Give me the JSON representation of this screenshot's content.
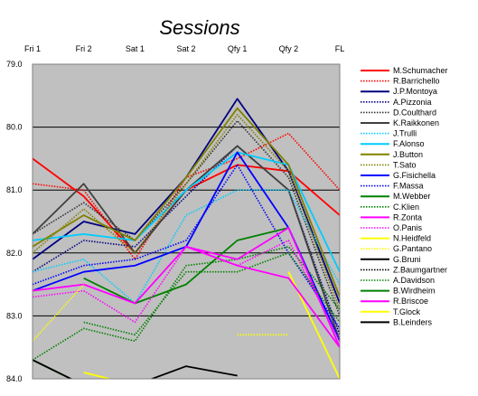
{
  "chart_data": {
    "type": "line",
    "title": "Sessions",
    "categories": [
      "Fri 1",
      "Fri 2",
      "Sat 1",
      "Sat 2",
      "Qfy 1",
      "Qfy 2",
      "FL"
    ],
    "ylim": [
      79.0,
      84.0
    ],
    "y_inverted": true,
    "yticks": [
      "79.0",
      "80.0",
      "81.0",
      "82.0",
      "83.0",
      "84.0"
    ],
    "grid": true,
    "plot_background": "#c0c0c0",
    "legend_position": "right",
    "series": [
      {
        "name": "M.Schumacher",
        "color": "#ff0000",
        "style": "solid",
        "values": [
          80.5,
          81.1,
          82.0,
          81.0,
          80.6,
          80.7,
          81.4
        ]
      },
      {
        "name": "R.Barrichello",
        "color": "#ff0000",
        "style": "dotted",
        "values": [
          80.9,
          81.0,
          82.1,
          80.8,
          80.5,
          80.1,
          81.0
        ]
      },
      {
        "name": "J.P.Montoya",
        "color": "#000080",
        "style": "solid",
        "values": [
          82.1,
          81.5,
          81.7,
          80.8,
          79.55,
          80.7,
          82.8
        ]
      },
      {
        "name": "A.Pizzonia",
        "color": "#000080",
        "style": "dotted",
        "values": [
          82.3,
          81.8,
          81.9,
          81.1,
          80.3,
          81.0,
          83.3
        ]
      },
      {
        "name": "D.Coulthard",
        "color": "#333333",
        "style": "dotted",
        "values": [
          81.7,
          81.2,
          81.8,
          80.9,
          79.9,
          80.8,
          83.0
        ]
      },
      {
        "name": "K.Raikkonen",
        "color": "#404040",
        "style": "solid",
        "values": [
          81.7,
          80.9,
          82.0,
          81.0,
          80.3,
          81.0,
          83.4
        ]
      },
      {
        "name": "J.Trulli",
        "color": "#00ccff",
        "style": "dotted",
        "values": [
          82.3,
          82.1,
          82.8,
          81.4,
          81.0,
          81.0,
          82.5
        ]
      },
      {
        "name": "F.Alonso",
        "color": "#00ccff",
        "style": "solid",
        "values": [
          81.8,
          81.7,
          81.8,
          81.0,
          80.4,
          80.6,
          82.3
        ]
      },
      {
        "name": "J.Button",
        "color": "#808000",
        "style": "solid",
        "values": [
          81.9,
          81.4,
          81.8,
          80.8,
          79.7,
          80.6,
          82.7
        ]
      },
      {
        "name": "T.Sato",
        "color": "#808000",
        "style": "dotted",
        "values": [
          82.0,
          81.3,
          82.0,
          80.9,
          79.8,
          80.7,
          82.9
        ]
      },
      {
        "name": "G.Fisichella",
        "color": "#0000ff",
        "style": "solid",
        "values": [
          82.6,
          82.3,
          82.2,
          81.9,
          80.4,
          81.6,
          83.4
        ]
      },
      {
        "name": "F.Massa",
        "color": "#0000ff",
        "style": "dotted",
        "values": [
          82.5,
          82.2,
          82.1,
          81.8,
          80.6,
          82.0,
          83.2
        ]
      },
      {
        "name": "M.Webber",
        "color": "#008000",
        "style": "solid",
        "values": [
          null,
          82.4,
          82.8,
          82.5,
          81.8,
          81.6,
          null
        ]
      },
      {
        "name": "C.Klien",
        "color": "#008000",
        "style": "dotted",
        "values": [
          83.7,
          83.2,
          83.4,
          82.2,
          82.1,
          81.9,
          82.9
        ]
      },
      {
        "name": "R.Zonta",
        "color": "#ff00ff",
        "style": "solid",
        "values": [
          82.6,
          82.5,
          82.8,
          81.9,
          82.1,
          81.6,
          83.5
        ]
      },
      {
        "name": "O.Panis",
        "color": "#ff00ff",
        "style": "dotted",
        "values": [
          82.7,
          82.6,
          83.1,
          81.9,
          82.2,
          81.8,
          83.4
        ]
      },
      {
        "name": "N.Heidfeld",
        "color": "#ffff00",
        "style": "solid",
        "values": [
          null,
          82.2,
          null,
          83.2,
          null,
          82.3,
          84.0
        ]
      },
      {
        "name": "G.Pantano",
        "color": "#ffff00",
        "style": "dotted",
        "values": [
          83.4,
          82.5,
          null,
          null,
          83.3,
          83.3,
          null
        ]
      },
      {
        "name": "G.Bruni",
        "color": "#000000",
        "style": "solid",
        "values": [
          null,
          null,
          84.1,
          83.8,
          83.95,
          null,
          null
        ]
      },
      {
        "name": "Z.Baumgartner",
        "color": "#000000",
        "style": "dotted",
        "values": [
          null,
          null,
          null,
          null,
          null,
          null,
          null
        ]
      },
      {
        "name": "A.Davidson",
        "color": "#008000",
        "style": "dotted",
        "values": [
          null,
          83.1,
          83.3,
          82.3,
          82.3,
          82.0,
          83.1
        ]
      },
      {
        "name": "B.Wirdheim",
        "color": "#008000",
        "style": "solid",
        "values": [
          83.7,
          84.1,
          null,
          null,
          null,
          null,
          null
        ]
      },
      {
        "name": "R.Briscoe",
        "color": "#ff00ff",
        "style": "solid",
        "values": [
          null,
          null,
          null,
          81.9,
          82.2,
          82.4,
          83.5
        ]
      },
      {
        "name": "T.Glock",
        "color": "#ffff00",
        "style": "solid",
        "values": [
          null,
          83.9,
          84.1,
          null,
          null,
          null,
          null
        ]
      },
      {
        "name": "B.Leinders",
        "color": "#000000",
        "style": "solid",
        "values": [
          83.7,
          84.1,
          null,
          null,
          null,
          null,
          null
        ]
      }
    ]
  }
}
